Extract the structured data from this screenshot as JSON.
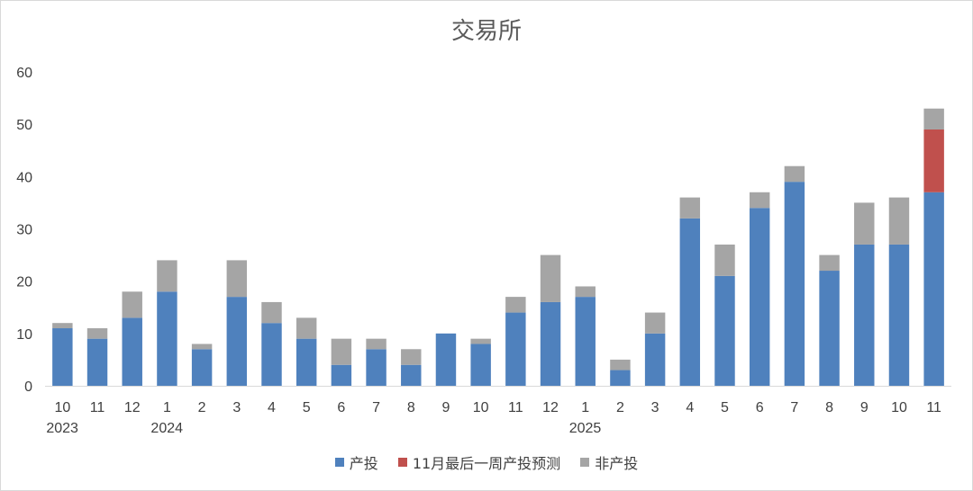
{
  "chart_data": {
    "type": "bar",
    "stacked": true,
    "title": "交易所",
    "xlabel": "",
    "ylabel": "",
    "ylim": [
      0,
      60
    ],
    "yticks": [
      0,
      10,
      20,
      30,
      40,
      50,
      60
    ],
    "grid": false,
    "legend_position": "bottom",
    "categories": [
      "10",
      "11",
      "12",
      "1",
      "2",
      "3",
      "4",
      "5",
      "6",
      "7",
      "8",
      "9",
      "10",
      "11",
      "12",
      "1",
      "2",
      "3",
      "4",
      "5",
      "6",
      "7",
      "8",
      "9",
      "10",
      "11"
    ],
    "year_labels": [
      {
        "index": 0,
        "label": "2023"
      },
      {
        "index": 3,
        "label": "2024"
      },
      {
        "index": 15,
        "label": "2025"
      }
    ],
    "series": [
      {
        "name": "产投",
        "color": "#4f81bd",
        "values": [
          11,
          9,
          13,
          18,
          7,
          17,
          12,
          9,
          4,
          7,
          4,
          10,
          8,
          14,
          16,
          17,
          3,
          10,
          32,
          21,
          34,
          39,
          22,
          27,
          27,
          37
        ]
      },
      {
        "name": "11月最后一周产投预测",
        "color": "#c0504d",
        "values": [
          0,
          0,
          0,
          0,
          0,
          0,
          0,
          0,
          0,
          0,
          0,
          0,
          0,
          0,
          0,
          0,
          0,
          0,
          0,
          0,
          0,
          0,
          0,
          0,
          0,
          12
        ]
      },
      {
        "name": "非产投",
        "color": "#a5a5a5",
        "values": [
          1,
          2,
          5,
          6,
          1,
          7,
          4,
          4,
          5,
          2,
          3,
          0,
          1,
          3,
          9,
          2,
          2,
          4,
          4,
          6,
          3,
          3,
          3,
          8,
          9,
          4
        ]
      }
    ]
  }
}
